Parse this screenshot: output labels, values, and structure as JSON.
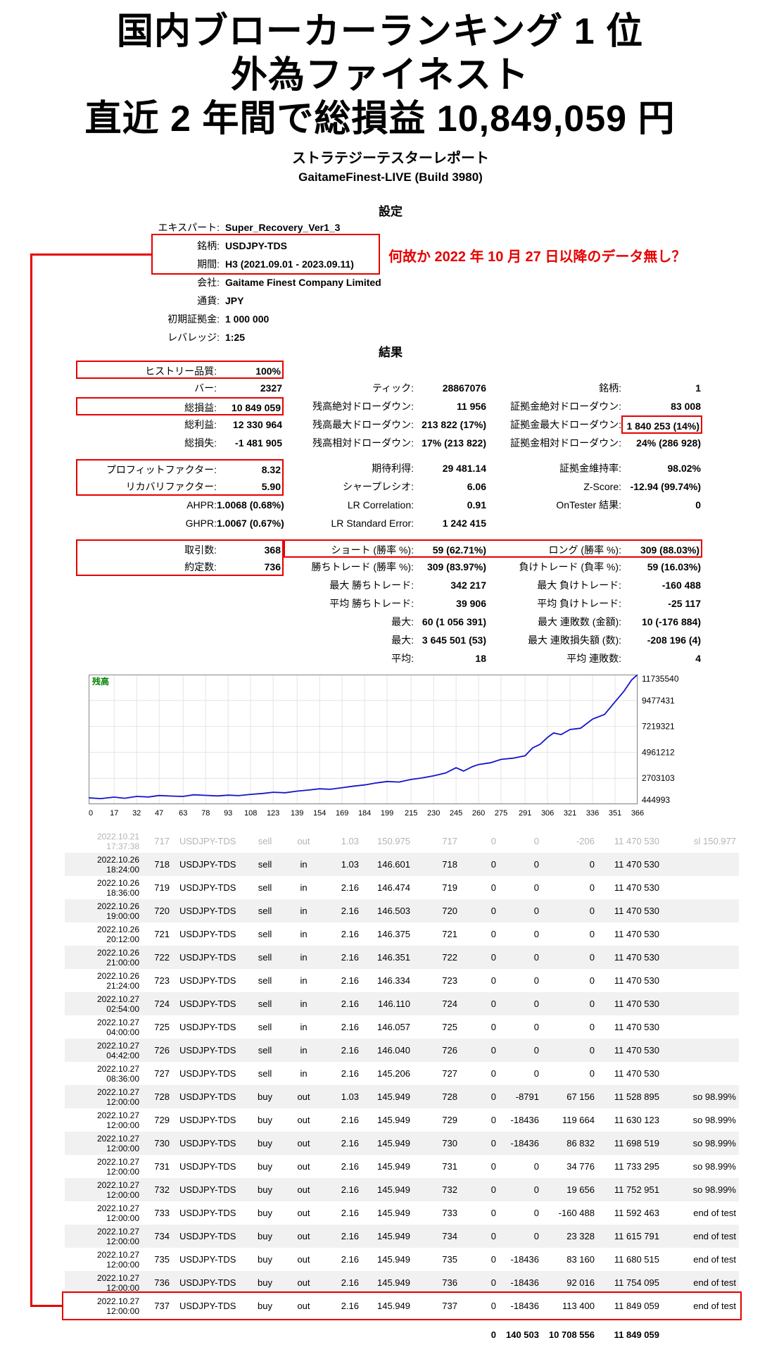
{
  "hero": {
    "lines": [
      "国内ブローカーランキング 1 位",
      "外為ファイネスト",
      "直近 2 年間で総損益 10,849,059 円"
    ]
  },
  "report": {
    "title": "ストラテジーテスターレポート",
    "build": "GaitameFinest-LIVE (Build 3980)"
  },
  "annotation": "何故か 2022 年 10 月 27 日以降のデータ無し？",
  "settings": {
    "heading": "設定",
    "rows": [
      {
        "label": "エキスパート:",
        "value": "Super_Recovery_Ver1_3"
      },
      {
        "label": "銘柄:",
        "value": "USDJPY-TDS"
      },
      {
        "label": "期間:",
        "value": "H3 (2021.09.01 - 2023.09.11)"
      },
      {
        "label": "会社:",
        "value": "Gaitame Finest Company Limited"
      },
      {
        "label": "通貨:",
        "value": "JPY"
      },
      {
        "label": "初期証拠金:",
        "value": "1 000 000"
      },
      {
        "label": "レバレッジ:",
        "value": "1:25"
      }
    ]
  },
  "results": {
    "heading": "結果",
    "rows": [
      {
        "cells": [
          {
            "l": "ヒストリー品質:",
            "v": "100%",
            "box": "single"
          },
          {
            "l": "",
            "v": ""
          },
          {
            "l": "",
            "v": ""
          }
        ]
      },
      {
        "cells": [
          {
            "l": "バー:",
            "v": "2327"
          },
          {
            "l": "ティック:",
            "v": "28867076"
          },
          {
            "l": "銘柄:",
            "v": "1"
          }
        ]
      },
      {
        "cells": [
          {
            "l": "総損益:",
            "v": "10 849 059",
            "box": "single"
          },
          {
            "l": "残高絶対ドローダウン:",
            "v": "11 956"
          },
          {
            "l": "証拠金絶対ドローダウン:",
            "v": "83 008"
          }
        ]
      },
      {
        "cells": [
          {
            "l": "総利益:",
            "v": "12 330 964"
          },
          {
            "l": "残高最大ドローダウン:",
            "v": "213 822 (17%)"
          },
          {
            "l": "証拠金最大ドローダウン:",
            "v": "1 840 253 (14%)",
            "box": "value"
          }
        ]
      },
      {
        "cells": [
          {
            "l": "総損失:",
            "v": "-1 481 905"
          },
          {
            "l": "残高相対ドローダウン:",
            "v": "17% (213 822)"
          },
          {
            "l": "証拠金相対ドローダウン:",
            "v": "24% (286 928)"
          }
        ]
      },
      {
        "spacer": true
      },
      {
        "cells": [
          {
            "l": "プロフィットファクター:",
            "v": "8.32",
            "box": "top"
          },
          {
            "l": "期待利得:",
            "v": "29 481.14"
          },
          {
            "l": "証拠金維持率:",
            "v": "98.02%"
          }
        ]
      },
      {
        "cells": [
          {
            "l": "リカバリファクター:",
            "v": "5.90",
            "box": "bottom"
          },
          {
            "l": "シャープレシオ:",
            "v": "6.06"
          },
          {
            "l": "Z-Score:",
            "v": "-12.94 (99.74%)"
          }
        ]
      },
      {
        "cells": [
          {
            "l": "AHPR:",
            "v": "1.0068 (0.68%)"
          },
          {
            "l": "LR Correlation:",
            "v": "0.91"
          },
          {
            "l": "OnTester 結果:",
            "v": "0"
          }
        ]
      },
      {
        "cells": [
          {
            "l": "GHPR:",
            "v": "1.0067 (0.67%)"
          },
          {
            "l": "LR Standard Error:",
            "v": "1 242 415"
          },
          {
            "l": "",
            "v": ""
          }
        ]
      },
      {
        "spacer": true
      },
      {
        "cells": [
          {
            "l": "取引数:",
            "v": "368",
            "box": "top"
          },
          {
            "l": "ショート (勝率 %):",
            "v": "59 (62.71%)",
            "box": "wideL"
          },
          {
            "l": "ロング (勝率 %):",
            "v": "309 (88.03%)",
            "box": "wideR"
          }
        ]
      },
      {
        "cells": [
          {
            "l": "約定数:",
            "v": "736",
            "box": "bottom"
          },
          {
            "l": "勝ちトレード (勝率 %):",
            "v": "309 (83.97%)"
          },
          {
            "l": "負けトレード (負率 %):",
            "v": "59 (16.03%)"
          }
        ]
      },
      {
        "cells": [
          {
            "l": "",
            "v": ""
          },
          {
            "l": "最大 勝ちトレード:",
            "v": "342 217"
          },
          {
            "l": "最大 負けトレード:",
            "v": "-160 488"
          }
        ]
      },
      {
        "cells": [
          {
            "l": "",
            "v": ""
          },
          {
            "l": "平均 勝ちトレード:",
            "v": "39 906"
          },
          {
            "l": "平均 負けトレード:",
            "v": "-25 117"
          }
        ]
      },
      {
        "cells": [
          {
            "l": "",
            "v": ""
          },
          {
            "l": "最大:",
            "v": "60 (1 056 391)"
          },
          {
            "l": "最大 連敗数 (金額):",
            "v": "10 (-176 884)"
          }
        ]
      },
      {
        "cells": [
          {
            "l": "",
            "v": ""
          },
          {
            "l": "最大:",
            "v": "3 645 501 (53)"
          },
          {
            "l": "最大 連敗損失額 (数):",
            "v": "-208 196 (4)"
          }
        ]
      },
      {
        "cells": [
          {
            "l": "",
            "v": ""
          },
          {
            "l": "平均:",
            "v": "18"
          },
          {
            "l": "平均 連敗数:",
            "v": "4"
          }
        ]
      }
    ]
  },
  "chart_data": {
    "type": "line",
    "title": "残高",
    "line_color": "#1414cc",
    "grid": true,
    "x_range": [
      0,
      366
    ],
    "y_range": [
      444993,
      11735540
    ],
    "x_ticks": [
      0,
      17,
      32,
      47,
      63,
      78,
      93,
      108,
      123,
      139,
      154,
      169,
      184,
      199,
      215,
      230,
      245,
      260,
      275,
      291,
      306,
      321,
      336,
      351,
      366
    ],
    "y_ticks": [
      444993,
      2703103,
      4961212,
      7219321,
      9477431,
      11735540
    ],
    "points": [
      [
        0,
        1000000
      ],
      [
        8,
        930000
      ],
      [
        17,
        1060000
      ],
      [
        24,
        960000
      ],
      [
        32,
        1120000
      ],
      [
        40,
        1070000
      ],
      [
        47,
        1200000
      ],
      [
        55,
        1150000
      ],
      [
        63,
        1120000
      ],
      [
        70,
        1260000
      ],
      [
        78,
        1210000
      ],
      [
        86,
        1160000
      ],
      [
        93,
        1230000
      ],
      [
        100,
        1190000
      ],
      [
        108,
        1300000
      ],
      [
        116,
        1380000
      ],
      [
        123,
        1480000
      ],
      [
        131,
        1440000
      ],
      [
        139,
        1580000
      ],
      [
        147,
        1680000
      ],
      [
        154,
        1780000
      ],
      [
        161,
        1740000
      ],
      [
        169,
        1880000
      ],
      [
        177,
        2020000
      ],
      [
        184,
        2120000
      ],
      [
        192,
        2300000
      ],
      [
        199,
        2420000
      ],
      [
        207,
        2370000
      ],
      [
        215,
        2600000
      ],
      [
        222,
        2720000
      ],
      [
        230,
        2920000
      ],
      [
        238,
        3160000
      ],
      [
        245,
        3620000
      ],
      [
        250,
        3330000
      ],
      [
        256,
        3720000
      ],
      [
        260,
        3900000
      ],
      [
        268,
        4050000
      ],
      [
        275,
        4350000
      ],
      [
        283,
        4450000
      ],
      [
        291,
        4660000
      ],
      [
        296,
        5350000
      ],
      [
        301,
        5660000
      ],
      [
        306,
        6260000
      ],
      [
        310,
        6650000
      ],
      [
        315,
        6510000
      ],
      [
        321,
        6950000
      ],
      [
        328,
        7060000
      ],
      [
        336,
        7860000
      ],
      [
        344,
        8260000
      ],
      [
        351,
        9360000
      ],
      [
        357,
        10300000
      ],
      [
        362,
        11260000
      ],
      [
        366,
        11735540
      ]
    ]
  },
  "trades": {
    "rows": [
      {
        "d": "2022.10.21",
        "t": "17:37:38",
        "n": "717",
        "sym": "USDJPY-TDS",
        "ty": "sell",
        "dir": "out",
        "v": "1.03",
        "p": "150.975",
        "o": "717",
        "c": "0",
        "s": "0",
        "pf": "-206",
        "b": "11 470 530",
        "cm": "sl 150.977",
        "faded": true
      },
      {
        "d": "2022.10.26",
        "t": "18:24:00",
        "n": "718",
        "sym": "USDJPY-TDS",
        "ty": "sell",
        "dir": "in",
        "v": "1.03",
        "p": "146.601",
        "o": "718",
        "c": "0",
        "s": "0",
        "pf": "0",
        "b": "11 470 530",
        "cm": ""
      },
      {
        "d": "2022.10.26",
        "t": "18:36:00",
        "n": "719",
        "sym": "USDJPY-TDS",
        "ty": "sell",
        "dir": "in",
        "v": "2.16",
        "p": "146.474",
        "o": "719",
        "c": "0",
        "s": "0",
        "pf": "0",
        "b": "11 470 530",
        "cm": ""
      },
      {
        "d": "2022.10.26",
        "t": "19:00:00",
        "n": "720",
        "sym": "USDJPY-TDS",
        "ty": "sell",
        "dir": "in",
        "v": "2.16",
        "p": "146.503",
        "o": "720",
        "c": "0",
        "s": "0",
        "pf": "0",
        "b": "11 470 530",
        "cm": ""
      },
      {
        "d": "2022.10.26",
        "t": "20:12:00",
        "n": "721",
        "sym": "USDJPY-TDS",
        "ty": "sell",
        "dir": "in",
        "v": "2.16",
        "p": "146.375",
        "o": "721",
        "c": "0",
        "s": "0",
        "pf": "0",
        "b": "11 470 530",
        "cm": ""
      },
      {
        "d": "2022.10.26",
        "t": "21:00:00",
        "n": "722",
        "sym": "USDJPY-TDS",
        "ty": "sell",
        "dir": "in",
        "v": "2.16",
        "p": "146.351",
        "o": "722",
        "c": "0",
        "s": "0",
        "pf": "0",
        "b": "11 470 530",
        "cm": ""
      },
      {
        "d": "2022.10.26",
        "t": "21:24:00",
        "n": "723",
        "sym": "USDJPY-TDS",
        "ty": "sell",
        "dir": "in",
        "v": "2.16",
        "p": "146.334",
        "o": "723",
        "c": "0",
        "s": "0",
        "pf": "0",
        "b": "11 470 530",
        "cm": ""
      },
      {
        "d": "2022.10.27",
        "t": "02:54:00",
        "n": "724",
        "sym": "USDJPY-TDS",
        "ty": "sell",
        "dir": "in",
        "v": "2.16",
        "p": "146.110",
        "o": "724",
        "c": "0",
        "s": "0",
        "pf": "0",
        "b": "11 470 530",
        "cm": ""
      },
      {
        "d": "2022.10.27",
        "t": "04:00:00",
        "n": "725",
        "sym": "USDJPY-TDS",
        "ty": "sell",
        "dir": "in",
        "v": "2.16",
        "p": "146.057",
        "o": "725",
        "c": "0",
        "s": "0",
        "pf": "0",
        "b": "11 470 530",
        "cm": ""
      },
      {
        "d": "2022.10.27",
        "t": "04:42:00",
        "n": "726",
        "sym": "USDJPY-TDS",
        "ty": "sell",
        "dir": "in",
        "v": "2.16",
        "p": "146.040",
        "o": "726",
        "c": "0",
        "s": "0",
        "pf": "0",
        "b": "11 470 530",
        "cm": ""
      },
      {
        "d": "2022.10.27",
        "t": "08:36:00",
        "n": "727",
        "sym": "USDJPY-TDS",
        "ty": "sell",
        "dir": "in",
        "v": "2.16",
        "p": "145.206",
        "o": "727",
        "c": "0",
        "s": "0",
        "pf": "0",
        "b": "11 470 530",
        "cm": ""
      },
      {
        "d": "2022.10.27",
        "t": "12:00:00",
        "n": "728",
        "sym": "USDJPY-TDS",
        "ty": "buy",
        "dir": "out",
        "v": "1.03",
        "p": "145.949",
        "o": "728",
        "c": "0",
        "s": "-8791",
        "pf": "67 156",
        "b": "11 528 895",
        "cm": "so 98.99%"
      },
      {
        "d": "2022.10.27",
        "t": "12:00:00",
        "n": "729",
        "sym": "USDJPY-TDS",
        "ty": "buy",
        "dir": "out",
        "v": "2.16",
        "p": "145.949",
        "o": "729",
        "c": "0",
        "s": "-18436",
        "pf": "119 664",
        "b": "11 630 123",
        "cm": "so 98.99%"
      },
      {
        "d": "2022.10.27",
        "t": "12:00:00",
        "n": "730",
        "sym": "USDJPY-TDS",
        "ty": "buy",
        "dir": "out",
        "v": "2.16",
        "p": "145.949",
        "o": "730",
        "c": "0",
        "s": "-18436",
        "pf": "86 832",
        "b": "11 698 519",
        "cm": "so 98.99%"
      },
      {
        "d": "2022.10.27",
        "t": "12:00:00",
        "n": "731",
        "sym": "USDJPY-TDS",
        "ty": "buy",
        "dir": "out",
        "v": "2.16",
        "p": "145.949",
        "o": "731",
        "c": "0",
        "s": "0",
        "pf": "34 776",
        "b": "11 733 295",
        "cm": "so 98.99%"
      },
      {
        "d": "2022.10.27",
        "t": "12:00:00",
        "n": "732",
        "sym": "USDJPY-TDS",
        "ty": "buy",
        "dir": "out",
        "v": "2.16",
        "p": "145.949",
        "o": "732",
        "c": "0",
        "s": "0",
        "pf": "19 656",
        "b": "11 752 951",
        "cm": "so 98.99%"
      },
      {
        "d": "2022.10.27",
        "t": "12:00:00",
        "n": "733",
        "sym": "USDJPY-TDS",
        "ty": "buy",
        "dir": "out",
        "v": "2.16",
        "p": "145.949",
        "o": "733",
        "c": "0",
        "s": "0",
        "pf": "-160 488",
        "b": "11 592 463",
        "cm": "end of test"
      },
      {
        "d": "2022.10.27",
        "t": "12:00:00",
        "n": "734",
        "sym": "USDJPY-TDS",
        "ty": "buy",
        "dir": "out",
        "v": "2.16",
        "p": "145.949",
        "o": "734",
        "c": "0",
        "s": "0",
        "pf": "23 328",
        "b": "11 615 791",
        "cm": "end of test"
      },
      {
        "d": "2022.10.27",
        "t": "12:00:00",
        "n": "735",
        "sym": "USDJPY-TDS",
        "ty": "buy",
        "dir": "out",
        "v": "2.16",
        "p": "145.949",
        "o": "735",
        "c": "0",
        "s": "-18436",
        "pf": "83 160",
        "b": "11 680 515",
        "cm": "end of test"
      },
      {
        "d": "2022.10.27",
        "t": "12:00:00",
        "n": "736",
        "sym": "USDJPY-TDS",
        "ty": "buy",
        "dir": "out",
        "v": "2.16",
        "p": "145.949",
        "o": "736",
        "c": "0",
        "s": "-18436",
        "pf": "92 016",
        "b": "11 754 095",
        "cm": "end of test"
      },
      {
        "d": "2022.10.27",
        "t": "12:00:00",
        "n": "737",
        "sym": "USDJPY-TDS",
        "ty": "buy",
        "dir": "out",
        "v": "2.16",
        "p": "145.949",
        "o": "737",
        "c": "0",
        "s": "-18436",
        "pf": "113 400",
        "b": "11 849 059",
        "cm": "end of test",
        "hl": true
      }
    ],
    "totals": {
      "c": "0",
      "s": "140 503",
      "pf": "10 708 556",
      "b": "11 849 059"
    }
  }
}
